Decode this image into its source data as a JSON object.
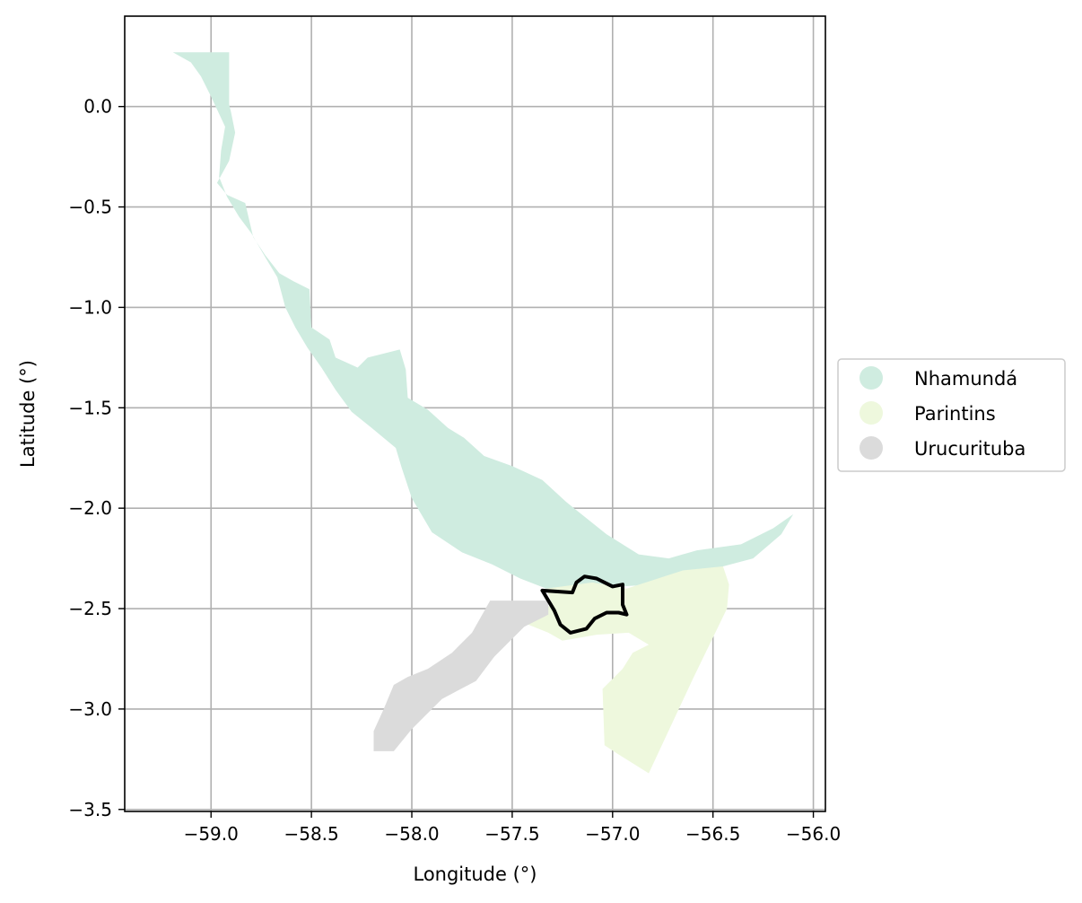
{
  "chart_data": {
    "type": "map",
    "xlabel": "Longitude (°)",
    "ylabel": "Latitude (°)",
    "xlim": [
      -59.43,
      -55.94
    ],
    "ylim": [
      -3.51,
      0.45
    ],
    "xticks": [
      -59.0,
      -58.5,
      -58.0,
      -57.5,
      -57.0,
      -56.5,
      -56.0
    ],
    "xtick_labels": [
      "−59.0",
      "−58.5",
      "−58.0",
      "−57.5",
      "−57.0",
      "−56.5",
      "−56.0"
    ],
    "yticks": [
      0.0,
      -0.5,
      -1.0,
      -1.5,
      -2.0,
      -2.5,
      -3.0,
      -3.5
    ],
    "ytick_labels": [
      "0.0",
      "−0.5",
      "−1.0",
      "−1.5",
      "−2.0",
      "−2.5",
      "−3.0",
      "−3.5"
    ],
    "grid": true,
    "legend_position": "center-right, outside plot",
    "legend": [
      {
        "label": "Nhamundá",
        "color": "#cfece0"
      },
      {
        "label": "Parintins",
        "color": "#eef8dd"
      },
      {
        "label": "Urucurituba",
        "color": "#dbdbdb"
      }
    ],
    "regions": [
      {
        "name": "Nhamundá",
        "color": "#cfece0",
        "polygon": [
          [
            -59.19,
            0.27
          ],
          [
            -58.91,
            0.27
          ],
          [
            -58.91,
            0.01
          ],
          [
            -58.9,
            -0.03
          ],
          [
            -58.88,
            -0.13
          ],
          [
            -58.91,
            -0.27
          ],
          [
            -58.97,
            -0.38
          ],
          [
            -58.92,
            -0.44
          ],
          [
            -58.83,
            -0.48
          ],
          [
            -58.79,
            -0.65
          ],
          [
            -58.73,
            -0.74
          ],
          [
            -58.66,
            -0.83
          ],
          [
            -58.59,
            -0.87
          ],
          [
            -58.51,
            -0.91
          ],
          [
            -58.5,
            -1.1
          ],
          [
            -58.41,
            -1.16
          ],
          [
            -58.38,
            -1.25
          ],
          [
            -58.27,
            -1.3
          ],
          [
            -58.22,
            -1.25
          ],
          [
            -58.14,
            -1.23
          ],
          [
            -58.06,
            -1.21
          ],
          [
            -58.03,
            -1.31
          ],
          [
            -58.02,
            -1.45
          ],
          [
            -57.92,
            -1.51
          ],
          [
            -57.82,
            -1.6
          ],
          [
            -57.74,
            -1.65
          ],
          [
            -57.64,
            -1.74
          ],
          [
            -57.5,
            -1.79
          ],
          [
            -57.35,
            -1.86
          ],
          [
            -57.23,
            -1.97
          ],
          [
            -57.03,
            -2.13
          ],
          [
            -56.87,
            -2.23
          ],
          [
            -56.72,
            -2.25
          ],
          [
            -56.58,
            -2.21
          ],
          [
            -56.36,
            -2.18
          ],
          [
            -56.2,
            -2.1
          ],
          [
            -56.1,
            -2.03
          ],
          [
            -56.16,
            -2.13
          ],
          [
            -56.3,
            -2.25
          ],
          [
            -56.45,
            -2.29
          ],
          [
            -56.62,
            -2.35
          ],
          [
            -56.8,
            -2.38
          ],
          [
            -56.96,
            -2.39
          ],
          [
            -57.16,
            -2.38
          ],
          [
            -57.33,
            -2.4
          ],
          [
            -57.46,
            -2.35
          ],
          [
            -57.6,
            -2.28
          ],
          [
            -57.75,
            -2.22
          ],
          [
            -57.9,
            -2.12
          ],
          [
            -58.0,
            -1.95
          ],
          [
            -58.05,
            -1.8
          ],
          [
            -58.08,
            -1.7
          ],
          [
            -58.2,
            -1.6
          ],
          [
            -58.3,
            -1.52
          ],
          [
            -58.38,
            -1.41
          ],
          [
            -58.45,
            -1.3
          ],
          [
            -58.52,
            -1.2
          ],
          [
            -58.58,
            -1.1
          ],
          [
            -58.63,
            -1.0
          ],
          [
            -58.67,
            -0.85
          ],
          [
            -58.73,
            -0.75
          ],
          [
            -58.8,
            -0.63
          ],
          [
            -58.86,
            -0.55
          ],
          [
            -58.92,
            -0.45
          ],
          [
            -58.96,
            -0.35
          ],
          [
            -58.95,
            -0.22
          ],
          [
            -58.93,
            -0.1
          ],
          [
            -59.0,
            0.05
          ],
          [
            -59.05,
            0.15
          ],
          [
            -59.1,
            0.22
          ],
          [
            -59.19,
            0.27
          ]
        ]
      },
      {
        "name": "Parintins",
        "color": "#eef8dd",
        "polygon": [
          [
            -57.33,
            -2.4
          ],
          [
            -57.1,
            -2.37
          ],
          [
            -56.93,
            -2.4
          ],
          [
            -56.65,
            -2.31
          ],
          [
            -56.45,
            -2.29
          ],
          [
            -56.42,
            -2.38
          ],
          [
            -56.43,
            -2.5
          ],
          [
            -56.6,
            -2.85
          ],
          [
            -56.82,
            -3.32
          ],
          [
            -56.98,
            -3.22
          ],
          [
            -57.04,
            -3.18
          ],
          [
            -57.05,
            -2.9
          ],
          [
            -56.95,
            -2.8
          ],
          [
            -56.9,
            -2.72
          ],
          [
            -56.82,
            -2.68
          ],
          [
            -56.92,
            -2.62
          ],
          [
            -57.08,
            -2.63
          ],
          [
            -57.25,
            -2.66
          ],
          [
            -57.32,
            -2.62
          ],
          [
            -57.42,
            -2.58
          ],
          [
            -57.38,
            -2.52
          ],
          [
            -57.3,
            -2.48
          ],
          [
            -57.33,
            -2.4
          ]
        ]
      },
      {
        "name": "Urucurituba",
        "color": "#dbdbdb",
        "polygon": [
          [
            -57.61,
            -2.46
          ],
          [
            -57.32,
            -2.46
          ],
          [
            -57.32,
            -2.53
          ],
          [
            -57.44,
            -2.59
          ],
          [
            -57.52,
            -2.67
          ],
          [
            -57.59,
            -2.74
          ],
          [
            -57.68,
            -2.86
          ],
          [
            -57.85,
            -2.95
          ],
          [
            -58.0,
            -3.1
          ],
          [
            -58.09,
            -3.21
          ],
          [
            -58.19,
            -3.21
          ],
          [
            -58.19,
            -3.11
          ],
          [
            -58.14,
            -3.0
          ],
          [
            -58.09,
            -2.88
          ],
          [
            -58.02,
            -2.84
          ],
          [
            -57.92,
            -2.8
          ],
          [
            -57.8,
            -2.72
          ],
          [
            -57.7,
            -2.62
          ],
          [
            -57.61,
            -2.46
          ]
        ]
      }
    ],
    "highlight_outline": {
      "color": "#000000",
      "polygon": [
        [
          -57.35,
          -2.41
        ],
        [
          -57.2,
          -2.42
        ],
        [
          -57.18,
          -2.37
        ],
        [
          -57.14,
          -2.34
        ],
        [
          -57.08,
          -2.35
        ],
        [
          -57.04,
          -2.37
        ],
        [
          -57.0,
          -2.39
        ],
        [
          -56.95,
          -2.38
        ],
        [
          -56.95,
          -2.44
        ],
        [
          -56.95,
          -2.48
        ],
        [
          -56.93,
          -2.53
        ],
        [
          -56.97,
          -2.52
        ],
        [
          -57.03,
          -2.52
        ],
        [
          -57.09,
          -2.55
        ],
        [
          -57.13,
          -2.6
        ],
        [
          -57.21,
          -2.62
        ],
        [
          -57.26,
          -2.58
        ],
        [
          -57.29,
          -2.51
        ],
        [
          -57.35,
          -2.41
        ]
      ]
    }
  }
}
